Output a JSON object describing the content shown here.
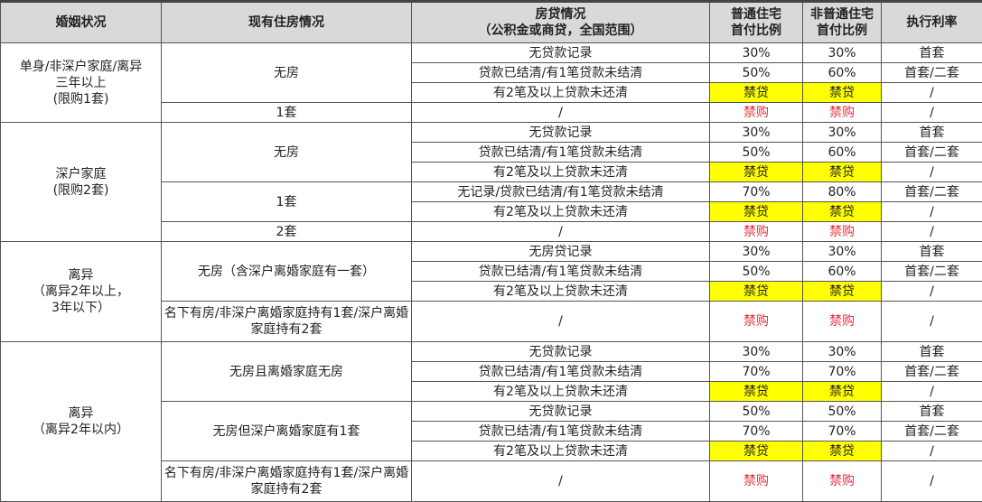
{
  "headers": [
    "婚姻状况",
    "现有住房情况",
    "房贷情况\n（公积金或商贷，全国范围）",
    "普通住宅\n首付比例",
    "非普通住宅\n首付比例",
    "执行利率"
  ],
  "groups": [
    {
      "status": "单身/非深户家庭/离异\n三年以上\n(限购1套)",
      "housing": [
        {
          "label": "无房",
          "rows": [
            [
              "无贷款记录",
              "30%",
              "30%",
              "首套"
            ],
            [
              "贷款已结清/有1笔贷款未结清",
              "50%",
              "60%",
              "首套/二套"
            ],
            [
              "有2笔及以上贷款未还清",
              "禁贷",
              "禁贷",
              "/"
            ]
          ]
        },
        {
          "label": "1套",
          "rows": [
            [
              "/",
              "禁购",
              "禁购",
              "/"
            ]
          ]
        }
      ]
    },
    {
      "status": "深户家庭\n(限购2套)",
      "housing": [
        {
          "label": "无房",
          "rows": [
            [
              "无贷款记录",
              "30%",
              "30%",
              "首套"
            ],
            [
              "贷款已结清/有1笔贷款未结清",
              "50%",
              "60%",
              "首套/二套"
            ],
            [
              "有2笔及以上贷款未还清",
              "禁贷",
              "禁贷",
              "/"
            ]
          ]
        },
        {
          "label": "1套",
          "rows": [
            [
              "无记录/贷款已结清/有1笔贷款未结清",
              "70%",
              "80%",
              "首套/二套"
            ],
            [
              "有2笔及以上贷款未还清",
              "禁贷",
              "禁贷",
              "/"
            ]
          ]
        },
        {
          "label": "2套",
          "rows": [
            [
              "/",
              "禁购",
              "禁购",
              "/"
            ]
          ]
        }
      ]
    },
    {
      "status": "离异\n（离异2年以上，\n3年以下）",
      "housing": [
        {
          "label": "无房（含深户离婚家庭有一套）",
          "rows": [
            [
              "无房贷记录",
              "30%",
              "30%",
              "首套"
            ],
            [
              "贷款已结清/有1笔贷款未结清",
              "50%",
              "60%",
              "首套/二套"
            ],
            [
              "有2笔及以上贷款未还清",
              "禁贷",
              "禁贷",
              "/"
            ]
          ]
        },
        {
          "label": "名下有房/非深户离婚家庭持有1套/深户离婚家庭持有2套",
          "tall": true,
          "rows": [
            [
              "/",
              "禁购",
              "禁购",
              "/"
            ]
          ]
        }
      ]
    },
    {
      "status": "离异\n（离异2年以内）",
      "housing": [
        {
          "label": "无房且离婚家庭无房",
          "rows": [
            [
              "无贷款记录",
              "30%",
              "30%",
              "首套"
            ],
            [
              "贷款已结清/有1笔贷款未结清",
              "70%",
              "70%",
              "首套/二套"
            ],
            [
              "有2笔及以上贷款未还清",
              "禁贷",
              "禁贷",
              "/"
            ]
          ]
        },
        {
          "label": "无房但深户离婚家庭有1套",
          "rows": [
            [
              "无贷款记录",
              "50%",
              "50%",
              "首套"
            ],
            [
              "贷款已结清/有1笔贷款未结清",
              "70%",
              "70%",
              "首套/二套"
            ],
            [
              "有2笔及以上贷款未还清",
              "禁贷",
              "禁贷",
              "/"
            ]
          ]
        },
        {
          "label": "名下有房/非深户离婚家庭持有1套/深户离婚家庭持有2套",
          "tall": true,
          "rows": [
            [
              "/",
              "禁购",
              "禁购",
              "/"
            ]
          ]
        }
      ]
    }
  ],
  "colors": {
    "highlight": "#ffff00",
    "forbidden_text": "#e0303a",
    "header_bg": "#d9d9d9"
  }
}
